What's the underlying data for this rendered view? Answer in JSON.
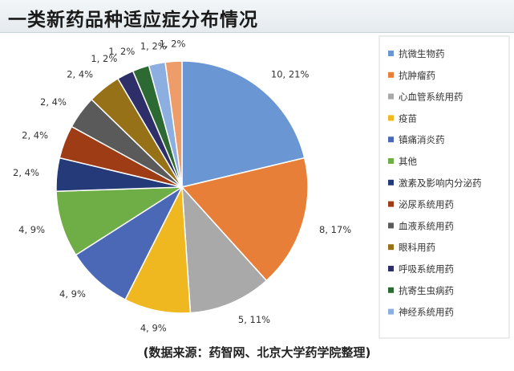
{
  "header": {
    "title": "一类新药品种适应症分布情况"
  },
  "footer": {
    "source": "(数据来源：药智网、北京大学药学院整理)"
  },
  "chart_data": {
    "type": "pie",
    "title": "一类新药品种适应症分布情况",
    "legend_position": "right",
    "slices": [
      {
        "name": "抗微生物药",
        "value": 10,
        "label": "10, 21%",
        "color": "#6a97d3"
      },
      {
        "name": "抗肿瘤药",
        "value": 8,
        "label": "8, 17%",
        "color": "#e87f38"
      },
      {
        "name": "心血管系统用药",
        "value": 5,
        "label": "5, 11%",
        "color": "#a9a9a9"
      },
      {
        "name": "疫苗",
        "value": 4,
        "label": "4, 9%",
        "color": "#f0b820"
      },
      {
        "name": "镇痛消炎药",
        "value": 4,
        "label": "4, 9%",
        "color": "#4a68b6"
      },
      {
        "name": "其他",
        "value": 4,
        "label": "4, 9%",
        "color": "#6fad47"
      },
      {
        "name": "激素及影响内分泌药",
        "value": 2,
        "label": "2, 4%",
        "color": "#253a78"
      },
      {
        "name": "泌尿系统用药",
        "value": 2,
        "label": "2, 4%",
        "color": "#9e3c16"
      },
      {
        "name": "血液系统用药",
        "value": 2,
        "label": "2, 4%",
        "color": "#5a5a5a"
      },
      {
        "name": "眼科用药",
        "value": 2,
        "label": "2, 4%",
        "color": "#977117"
      },
      {
        "name": "呼吸系统用药",
        "value": 1,
        "label": "1, 2%",
        "color": "#2e2f68"
      },
      {
        "name": "抗寄生虫病药",
        "value": 1,
        "label": "1, 2%",
        "color": "#2d6a33"
      },
      {
        "name": "神经系统用药",
        "value": 1,
        "label": "1, 2%",
        "color": "#8daee0"
      }
    ],
    "extra_slice": {
      "value": 1,
      "label": "1, 2%",
      "color": "#ee9d6a"
    }
  }
}
